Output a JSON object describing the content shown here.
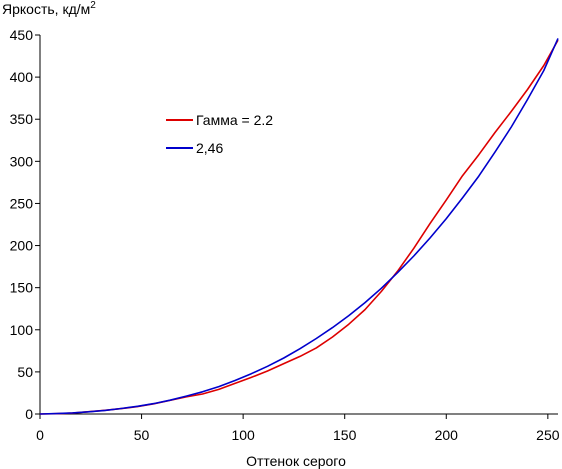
{
  "chart_data": {
    "type": "line",
    "ylabel": "Яркость, кд/м",
    "ylabel_superscript": "2",
    "xlabel": "Оттенок серого",
    "xlim": [
      0,
      255
    ],
    "ylim": [
      0,
      450
    ],
    "x_ticks": [
      0,
      50,
      100,
      150,
      200,
      250
    ],
    "y_ticks": [
      0,
      50,
      100,
      150,
      200,
      250,
      300,
      350,
      400,
      450
    ],
    "grid": false,
    "legend_position": "center-left",
    "series": [
      {
        "name": "Гамма = 2.2",
        "color": "#dd0000",
        "x": [
          0,
          8,
          16,
          24,
          32,
          40,
          48,
          56,
          64,
          72,
          80,
          88,
          96,
          104,
          112,
          120,
          128,
          136,
          144,
          152,
          160,
          168,
          176,
          184,
          192,
          200,
          208,
          216,
          224,
          232,
          240,
          248,
          255
        ],
        "y": [
          0,
          0.4,
          1.1,
          2.7,
          4.4,
          6.4,
          8.8,
          12.1,
          16.1,
          20.3,
          23.7,
          29.2,
          36.3,
          43.5,
          51.1,
          59.9,
          68.4,
          78.5,
          91.4,
          106.6,
          124.0,
          145.4,
          169.4,
          196.7,
          226.1,
          254.2,
          282.9,
          307.9,
          334.2,
          359.3,
          385.3,
          413.8,
          444
        ]
      },
      {
        "name": "2,46",
        "color": "#0000cc",
        "x": [
          0,
          8,
          16,
          24,
          32,
          40,
          48,
          56,
          64,
          72,
          80,
          88,
          96,
          104,
          112,
          120,
          128,
          136,
          144,
          152,
          160,
          168,
          176,
          184,
          192,
          200,
          208,
          216,
          224,
          232,
          240,
          248,
          255
        ],
        "y": [
          0,
          0.5,
          1.3,
          2.6,
          4.3,
          6.5,
          9.2,
          12.4,
          16.4,
          21.2,
          26.3,
          32.5,
          39.8,
          47.8,
          56.6,
          66.5,
          77.5,
          89.7,
          102.6,
          116.8,
          132.3,
          149.3,
          167.8,
          187.6,
          209.0,
          232.0,
          256.6,
          282.5,
          311.0,
          340.8,
          373.4,
          407.9,
          446
        ]
      }
    ]
  }
}
